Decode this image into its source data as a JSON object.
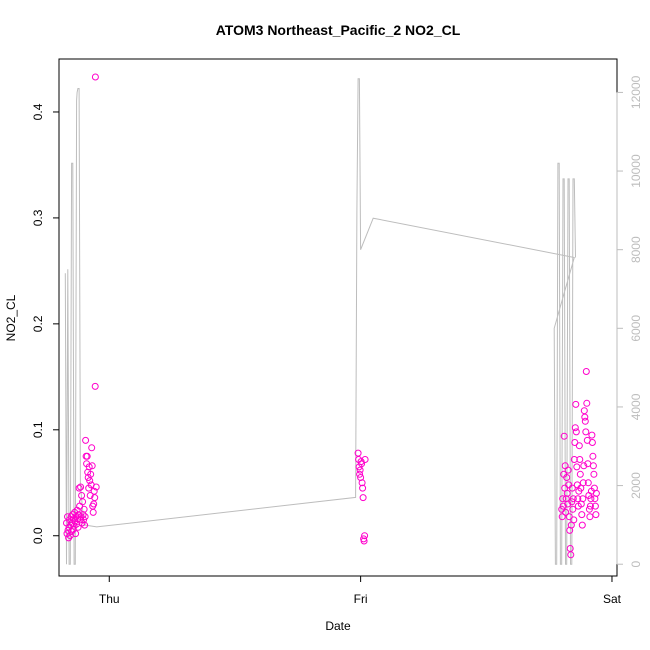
{
  "chart_data": {
    "type": "scatter",
    "title": "ATOM3 Northeast_Pacific_2 NO2_CL",
    "xlabel": "Date",
    "ylabel": "NO2_CL",
    "x_ticks": [
      "Thu",
      "Fri",
      "Sat"
    ],
    "y_ticks": [
      "0.0",
      "0.1",
      "0.2",
      "0.3",
      "0.4"
    ],
    "y2_ticks": [
      "0",
      "2000",
      "4000",
      "6000",
      "8000",
      "10000",
      "12000"
    ],
    "ylim": [
      -0.038,
      0.45
    ],
    "y2lim": [
      -300,
      12850
    ],
    "xlim": [
      -0.2,
      2.02
    ],
    "colors": {
      "points": "#ff00cc",
      "altitude_line": "#bdbdbd"
    },
    "series": [
      {
        "values": [
          [
            -0.17,
            0.012
          ],
          [
            -0.168,
            0.002
          ],
          [
            -0.166,
            0.018
          ],
          [
            -0.164,
            0.005
          ],
          [
            -0.162,
            -0.002
          ],
          [
            -0.16,
            0.008
          ],
          [
            -0.158,
            0.015
          ],
          [
            -0.156,
            0.0
          ],
          [
            -0.154,
            0.01
          ],
          [
            -0.152,
            0.018
          ],
          [
            -0.15,
            0.004
          ],
          [
            -0.148,
            0.012
          ],
          [
            -0.146,
            0.02
          ],
          [
            -0.144,
            0.006
          ],
          [
            -0.142,
            0.016
          ],
          [
            -0.14,
            0.009
          ],
          [
            -0.138,
            0.022
          ],
          [
            -0.136,
            0.014
          ],
          [
            -0.134,
            0.002
          ],
          [
            -0.132,
            0.018
          ],
          [
            -0.13,
            0.011
          ],
          [
            -0.128,
            0.024
          ],
          [
            -0.126,
            0.016
          ],
          [
            -0.124,
            0.008
          ],
          [
            -0.122,
            0.02
          ],
          [
            -0.12,
            0.045
          ],
          [
            -0.118,
            0.028
          ],
          [
            -0.116,
            0.015
          ],
          [
            -0.114,
            0.046
          ],
          [
            -0.112,
            0.018
          ],
          [
            -0.11,
            0.038
          ],
          [
            -0.108,
            0.012
          ],
          [
            -0.106,
            0.032
          ],
          [
            -0.104,
            0.02
          ],
          [
            -0.102,
            0.015
          ],
          [
            -0.1,
            0.025
          ],
          [
            -0.098,
            0.01
          ],
          [
            -0.096,
            0.018
          ],
          [
            -0.094,
            0.09
          ],
          [
            -0.092,
            0.075
          ],
          [
            -0.09,
            0.068
          ],
          [
            -0.088,
            0.075
          ],
          [
            -0.086,
            0.06
          ],
          [
            -0.084,
            0.055
          ],
          [
            -0.082,
            0.045
          ],
          [
            -0.08,
            0.065
          ],
          [
            -0.078,
            0.052
          ],
          [
            -0.076,
            0.038
          ],
          [
            -0.074,
            0.058
          ],
          [
            -0.072,
            0.048
          ],
          [
            -0.07,
            0.083
          ],
          [
            -0.068,
            0.066
          ],
          [
            -0.066,
            0.028
          ],
          [
            -0.064,
            0.022
          ],
          [
            -0.062,
            0.03
          ],
          [
            -0.06,
            0.042
          ],
          [
            -0.058,
            0.036
          ],
          [
            -0.056,
            0.141
          ],
          [
            -0.055,
            0.433
          ],
          [
            -0.052,
            0.046
          ],
          [
            0.99,
            0.078
          ],
          [
            0.992,
            0.072
          ],
          [
            0.994,
            0.065
          ],
          [
            0.996,
            0.058
          ],
          [
            0.998,
            0.062
          ],
          [
            1.0,
            0.055
          ],
          [
            1.002,
            0.07
          ],
          [
            1.004,
            0.068
          ],
          [
            1.006,
            0.05
          ],
          [
            1.008,
            0.045
          ],
          [
            1.01,
            0.036
          ],
          [
            1.012,
            -0.003
          ],
          [
            1.014,
            -0.005
          ],
          [
            1.016,
            0.0
          ],
          [
            1.018,
            0.072
          ],
          [
            1.8,
            0.025
          ],
          [
            1.802,
            0.018
          ],
          [
            1.804,
            0.035
          ],
          [
            1.806,
            0.028
          ],
          [
            1.808,
            0.058
          ],
          [
            1.81,
            0.094
          ],
          [
            1.812,
            0.045
          ],
          [
            1.814,
            0.066
          ],
          [
            1.816,
            0.022
          ],
          [
            1.818,
            0.035
          ],
          [
            1.82,
            0.055
          ],
          [
            1.822,
            0.04
          ],
          [
            1.824,
            0.03
          ],
          [
            1.826,
            0.062
          ],
          [
            1.828,
            0.048
          ],
          [
            1.83,
            0.018
          ],
          [
            1.832,
            0.005
          ],
          [
            1.834,
            -0.012
          ],
          [
            1.836,
            -0.018
          ],
          [
            1.838,
            0.01
          ],
          [
            1.84,
            0.032
          ],
          [
            1.842,
            0.045
          ],
          [
            1.844,
            0.025
          ],
          [
            1.846,
            0.035
          ],
          [
            1.848,
            0.015
          ],
          [
            1.85,
            0.072
          ],
          [
            1.852,
            0.088
          ],
          [
            1.854,
            0.102
          ],
          [
            1.856,
            0.124
          ],
          [
            1.858,
            0.098
          ],
          [
            1.86,
            0.065
          ],
          [
            1.862,
            0.048
          ],
          [
            1.864,
            0.035
          ],
          [
            1.866,
            0.028
          ],
          [
            1.868,
            0.042
          ],
          [
            1.87,
            0.085
          ],
          [
            1.872,
            0.072
          ],
          [
            1.874,
            0.058
          ],
          [
            1.876,
            0.045
          ],
          [
            1.878,
            0.03
          ],
          [
            1.88,
            0.02
          ],
          [
            1.882,
            0.01
          ],
          [
            1.884,
            0.035
          ],
          [
            1.886,
            0.05
          ],
          [
            1.888,
            0.066
          ],
          [
            1.89,
            0.118
          ],
          [
            1.892,
            0.112
          ],
          [
            1.894,
            0.108
          ],
          [
            1.896,
            0.098
          ],
          [
            1.898,
            0.155
          ],
          [
            1.9,
            0.125
          ],
          [
            1.902,
            0.09
          ],
          [
            1.904,
            0.068
          ],
          [
            1.906,
            0.05
          ],
          [
            1.908,
            0.038
          ],
          [
            1.91,
            0.025
          ],
          [
            1.912,
            0.018
          ],
          [
            1.914,
            0.028
          ],
          [
            1.916,
            0.035
          ],
          [
            1.918,
            0.042
          ],
          [
            1.92,
            0.095
          ],
          [
            1.922,
            0.088
          ],
          [
            1.924,
            0.075
          ],
          [
            1.926,
            0.066
          ],
          [
            1.928,
            0.058
          ],
          [
            1.93,
            0.045
          ],
          [
            1.932,
            0.035
          ],
          [
            1.934,
            0.028
          ],
          [
            1.936,
            0.02
          ],
          [
            1.938,
            0.04
          ]
        ]
      },
      {
        "values": [
          [
            -0.175,
            7400
          ],
          [
            -0.17,
            0
          ],
          [
            -0.165,
            7500
          ],
          [
            -0.16,
            0
          ],
          [
            -0.155,
            0
          ],
          [
            -0.15,
            10200
          ],
          [
            -0.145,
            10200
          ],
          [
            -0.14,
            0
          ],
          [
            -0.135,
            0
          ],
          [
            -0.13,
            11800
          ],
          [
            -0.128,
            12000
          ],
          [
            -0.125,
            12100
          ],
          [
            -0.12,
            12100
          ],
          [
            -0.115,
            2000
          ],
          [
            -0.1,
            1000
          ],
          [
            -0.05,
            950
          ],
          [
            0.98,
            1700
          ],
          [
            0.985,
            9000
          ],
          [
            0.99,
            12350
          ],
          [
            0.995,
            12350
          ],
          [
            1.0,
            8000
          ],
          [
            1.05,
            8800
          ],
          [
            1.85,
            7800
          ],
          [
            1.77,
            6000
          ],
          [
            1.775,
            0
          ],
          [
            1.78,
            0
          ],
          [
            1.785,
            10200
          ],
          [
            1.79,
            10200
          ],
          [
            1.795,
            0
          ],
          [
            1.8,
            0
          ],
          [
            1.805,
            9800
          ],
          [
            1.81,
            9800
          ],
          [
            1.815,
            0
          ],
          [
            1.82,
            0
          ],
          [
            1.825,
            9800
          ],
          [
            1.83,
            9800
          ],
          [
            1.835,
            0
          ],
          [
            1.84,
            0
          ],
          [
            1.845,
            9800
          ],
          [
            1.85,
            9800
          ],
          [
            1.855,
            7800
          ]
        ]
      }
    ]
  }
}
